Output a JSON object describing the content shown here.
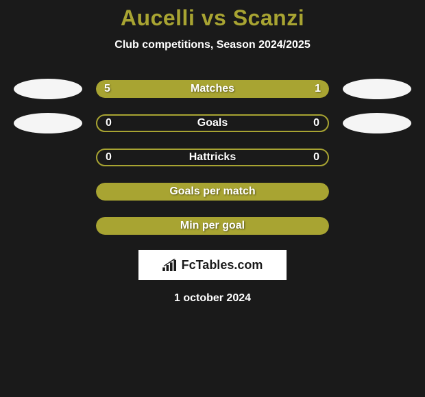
{
  "title": "Aucelli vs Scanzi",
  "subtitle": "Club competitions, Season 2024/2025",
  "date": "1 october 2024",
  "logo_text": "FcTables.com",
  "colors": {
    "bg": "#1a1a1a",
    "accent": "#a8a432",
    "text": "#ffffff",
    "avatar": "#f5f5f5",
    "logo_bg": "#ffffff",
    "logo_fg": "#1a1a1a"
  },
  "rows": [
    {
      "label": "Matches",
      "left_val": "5",
      "right_val": "1",
      "style": "split",
      "left_pct": 80,
      "right_pct": 20,
      "show_avatars": true
    },
    {
      "label": "Goals",
      "left_val": "0",
      "right_val": "0",
      "style": "outline",
      "left_pct": 0,
      "right_pct": 0,
      "show_avatars": true
    },
    {
      "label": "Hattricks",
      "left_val": "0",
      "right_val": "0",
      "style": "outline",
      "left_pct": 0,
      "right_pct": 0,
      "show_avatars": false
    },
    {
      "label": "Goals per match",
      "left_val": "",
      "right_val": "",
      "style": "full",
      "left_pct": 100,
      "right_pct": 0,
      "show_avatars": false
    },
    {
      "label": "Min per goal",
      "left_val": "",
      "right_val": "",
      "style": "full",
      "left_pct": 100,
      "right_pct": 0,
      "show_avatars": false
    }
  ]
}
